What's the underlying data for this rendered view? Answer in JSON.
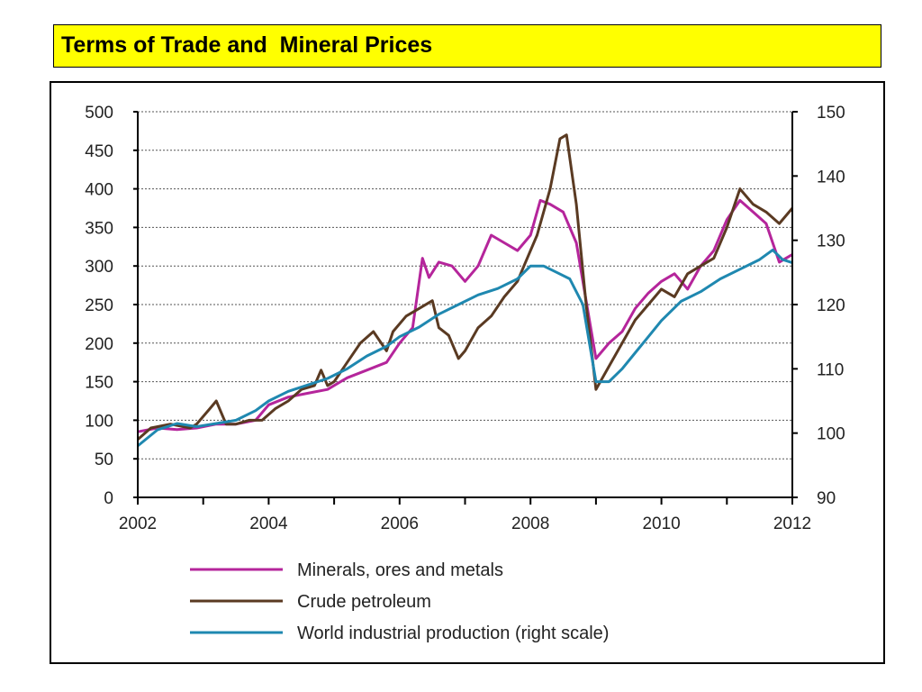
{
  "slide": {
    "title": "Terms of Trade and  Mineral Prices"
  },
  "chart_data": {
    "type": "line",
    "title": "",
    "xlabel": "",
    "ylabel": "",
    "y2label": "",
    "xlim": [
      2002,
      2012
    ],
    "ylim": [
      0,
      500
    ],
    "y2lim": [
      90,
      150
    ],
    "x_ticks": [
      "2002",
      "2004",
      "2006",
      "2008",
      "2010",
      "2012"
    ],
    "y_ticks": [
      "0",
      "50",
      "100",
      "150",
      "200",
      "250",
      "300",
      "350",
      "400",
      "450",
      "500"
    ],
    "y2_ticks": [
      "90",
      "100",
      "110",
      "120",
      "130",
      "140",
      "150"
    ],
    "grid": "horizontal dotted",
    "legend_position": "bottom",
    "series": [
      {
        "name": "Minerals, ores and metals",
        "color": "#b5259b",
        "axis": "left",
        "x": [
          2002.0,
          2002.3,
          2002.6,
          2002.9,
          2003.2,
          2003.5,
          2003.8,
          2004.0,
          2004.3,
          2004.6,
          2004.9,
          2005.2,
          2005.5,
          2005.8,
          2006.0,
          2006.2,
          2006.35,
          2006.45,
          2006.6,
          2006.8,
          2007.0,
          2007.2,
          2007.4,
          2007.6,
          2007.8,
          2008.0,
          2008.15,
          2008.3,
          2008.5,
          2008.7,
          2008.9,
          2009.0,
          2009.2,
          2009.4,
          2009.6,
          2009.8,
          2010.0,
          2010.2,
          2010.4,
          2010.6,
          2010.8,
          2011.0,
          2011.2,
          2011.4,
          2011.6,
          2011.8,
          2012.0
        ],
        "y": [
          85,
          90,
          88,
          90,
          95,
          95,
          100,
          120,
          130,
          135,
          140,
          155,
          165,
          175,
          200,
          220,
          310,
          285,
          305,
          300,
          280,
          300,
          340,
          330,
          320,
          340,
          385,
          380,
          370,
          330,
          230,
          180,
          200,
          215,
          245,
          265,
          280,
          290,
          270,
          300,
          320,
          360,
          385,
          370,
          355,
          305,
          315
        ]
      },
      {
        "name": "Crude petroleum",
        "color": "#5a3a22",
        "axis": "left",
        "x": [
          2002.0,
          2002.2,
          2002.5,
          2002.8,
          2002.9,
          2003.1,
          2003.2,
          2003.35,
          2003.5,
          2003.7,
          2003.9,
          2004.1,
          2004.3,
          2004.5,
          2004.7,
          2004.8,
          2004.9,
          2005.0,
          2005.2,
          2005.4,
          2005.6,
          2005.8,
          2005.9,
          2006.1,
          2006.3,
          2006.5,
          2006.6,
          2006.75,
          2006.9,
          2007.0,
          2007.2,
          2007.4,
          2007.6,
          2007.8,
          2007.9,
          2008.1,
          2008.3,
          2008.45,
          2008.55,
          2008.7,
          2008.85,
          2009.0,
          2009.2,
          2009.4,
          2009.6,
          2009.8,
          2010.0,
          2010.2,
          2010.4,
          2010.6,
          2010.8,
          2011.0,
          2011.2,
          2011.4,
          2011.6,
          2011.8,
          2012.0
        ],
        "y": [
          75,
          90,
          95,
          90,
          95,
          115,
          125,
          95,
          95,
          100,
          100,
          115,
          125,
          140,
          145,
          165,
          145,
          150,
          175,
          200,
          215,
          190,
          215,
          235,
          245,
          255,
          220,
          210,
          180,
          190,
          220,
          235,
          260,
          280,
          300,
          340,
          400,
          465,
          470,
          380,
          250,
          140,
          170,
          200,
          230,
          250,
          270,
          260,
          290,
          300,
          310,
          350,
          400,
          380,
          370,
          355,
          375
        ]
      },
      {
        "name": "World industrial production (right scale)",
        "color": "#1f88b0",
        "axis": "right",
        "x": [
          2002.0,
          2002.3,
          2002.6,
          2002.9,
          2003.2,
          2003.5,
          2003.8,
          2004.0,
          2004.3,
          2004.6,
          2004.9,
          2005.2,
          2005.5,
          2005.8,
          2006.0,
          2006.3,
          2006.6,
          2006.9,
          2007.2,
          2007.5,
          2007.8,
          2008.0,
          2008.2,
          2008.4,
          2008.6,
          2008.8,
          2009.0,
          2009.2,
          2009.4,
          2009.6,
          2009.8,
          2010.0,
          2010.3,
          2010.6,
          2010.9,
          2011.2,
          2011.5,
          2011.7,
          2011.85,
          2012.0
        ],
        "y": [
          98,
          100.5,
          101.5,
          101,
          101.5,
          102,
          103.5,
          105,
          106.5,
          107.5,
          108.5,
          110,
          112,
          113.5,
          115,
          116.5,
          118.5,
          120,
          121.5,
          122.5,
          124,
          126,
          126,
          125,
          124,
          120,
          108,
          108,
          110,
          112.5,
          115,
          117.5,
          120.5,
          122,
          124,
          125.5,
          127,
          128.5,
          127,
          126.5
        ]
      }
    ]
  }
}
